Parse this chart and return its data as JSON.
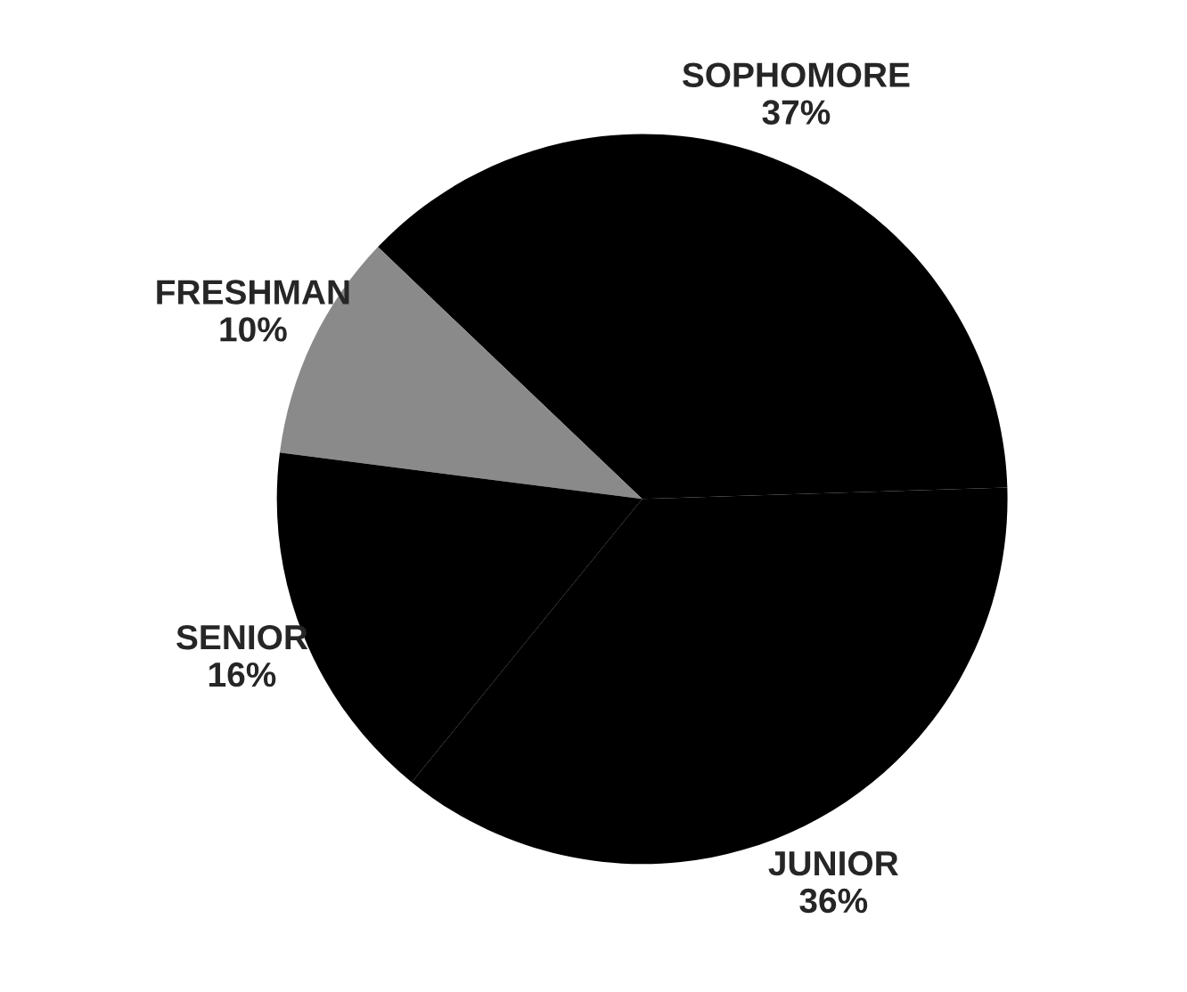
{
  "chart_data": {
    "type": "pie",
    "categories": [
      "SOPHOMORE",
      "FRESHMAN",
      "SENIOR",
      "JUNIOR"
    ],
    "values": [
      37,
      10,
      16,
      36
    ],
    "colors": [
      "#000000",
      "#8a8a8a",
      "#000000",
      "#000000"
    ],
    "value_labels": [
      "37%",
      "10%",
      "16%",
      "36%"
    ],
    "legend": false
  }
}
